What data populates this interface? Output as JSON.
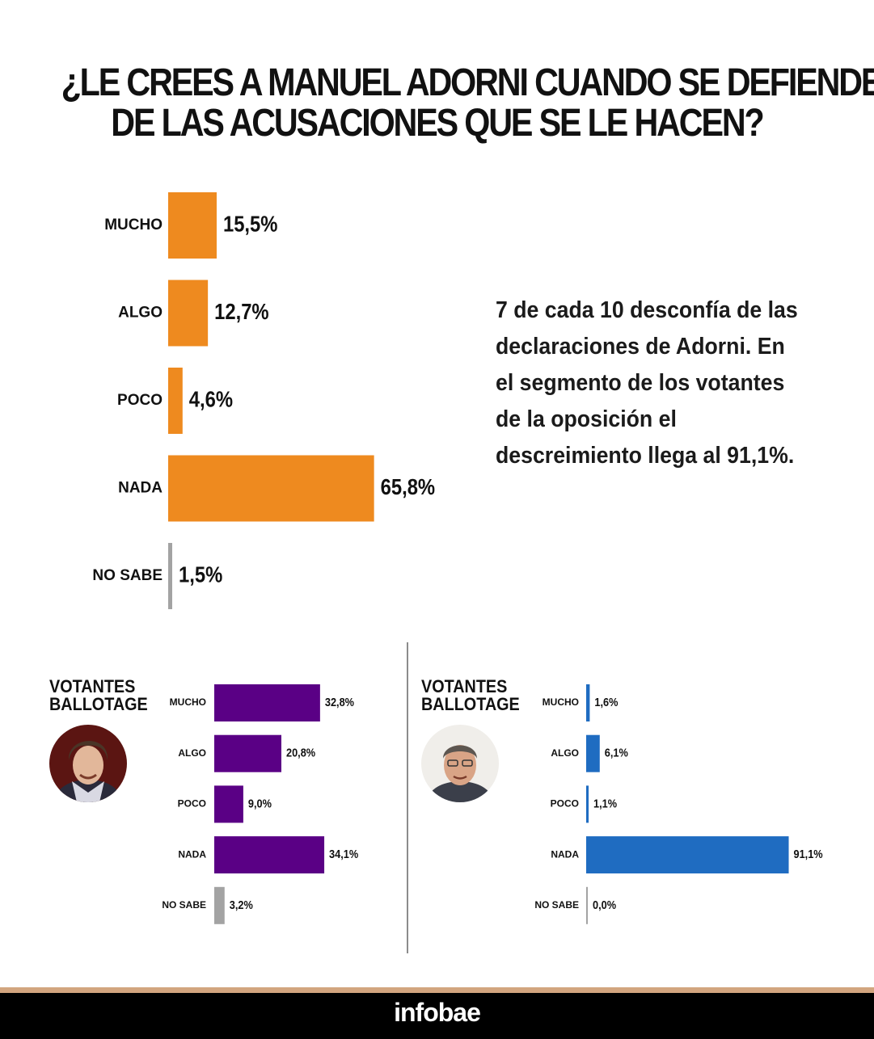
{
  "title": {
    "line1": "¿LE CREES A MANUEL ADORNI CUANDO SE DEFIENDE",
    "line2": "DE LAS ACUSACIONES QUE SE LE HACEN?"
  },
  "note": "7 de cada 10 desconfía de las declaraciones de Adorni. En el segmento de los votantes de la oposición el descreimiento llega al 91,1%.",
  "colors": {
    "main": "#ee8a1f",
    "milei": "#5a0085",
    "massa": "#1f6cc1",
    "no_sabe": "#a3a3a3",
    "footer_line": "#d2a57f"
  },
  "left_group": {
    "label_line1": "VOTANTES",
    "label_line2": "BALLOTAGE",
    "avatar_icon": "candidate-photo-milei"
  },
  "right_group": {
    "label_line1": "VOTANTES",
    "label_line2": "BALLOTAGE",
    "avatar_icon": "candidate-photo-massa"
  },
  "chart_data": [
    {
      "type": "bar",
      "orientation": "horizontal",
      "title": "¿LE CREES A MANUEL ADORNI CUANDO SE DEFIENDE DE LAS ACUSACIONES QUE SE LE HACEN?",
      "categories": [
        "MUCHO",
        "ALGO",
        "POCO",
        "NADA",
        "NO SABE"
      ],
      "values": [
        15.5,
        12.7,
        4.6,
        65.8,
        1.5
      ],
      "labels": [
        "15,5%",
        "12,7%",
        "4,6%",
        "65,8%",
        "1,5%"
      ],
      "unit": "%"
    },
    {
      "type": "bar",
      "orientation": "horizontal",
      "title": "VOTANTES BALLOTAGE",
      "categories": [
        "MUCHO",
        "ALGO",
        "POCO",
        "NADA",
        "NO SABE"
      ],
      "values": [
        32.8,
        20.8,
        9.0,
        34.1,
        3.2
      ],
      "labels": [
        "32,8%",
        "20,8%",
        "9,0%",
        "34,1%",
        "3,2%"
      ],
      "unit": "%"
    },
    {
      "type": "bar",
      "orientation": "horizontal",
      "title": "VOTANTES BALLOTAGE",
      "categories": [
        "MUCHO",
        "ALGO",
        "POCO",
        "NADA",
        "NO SABE"
      ],
      "values": [
        1.6,
        6.1,
        1.1,
        91.1,
        0.0
      ],
      "labels": [
        "1,6%",
        "6,1%",
        "1,1%",
        "91,1%",
        "0,0%"
      ],
      "unit": "%"
    }
  ],
  "footer": {
    "brand": "infobae"
  }
}
